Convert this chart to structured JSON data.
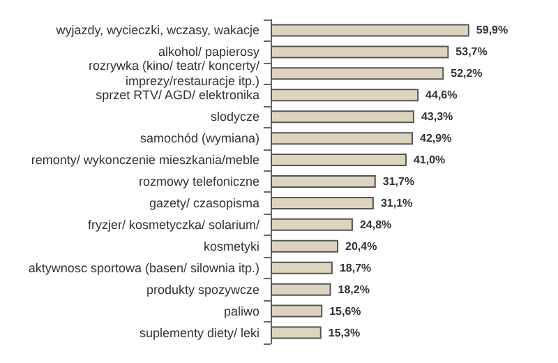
{
  "chart_data": {
    "type": "bar",
    "orientation": "horizontal",
    "color": "#ddd4bf",
    "categories": [
      "wyjazdy, wycieczki, wczasy, wakacje",
      "alkohol/ papierosy",
      "rozrywka (kino/ teatr/ koncerty/\nimprezy/restauracje itp.)",
      "sprzet RTV/ AGD/ elektronika",
      "slodycze",
      "samochód (wymiana)",
      "remonty/ wykonczenie mieszkania/meble",
      "rozmowy telefoniczne",
      "gazety/ czasopisma",
      "fryzjer/ kosmetyczka/ solarium/",
      "kosmetyki",
      "aktywnosc sportowa (basen/ silownia itp.)",
      "produkty spozywcze",
      "paliwo",
      "suplementy diety/ leki"
    ],
    "values": [
      59.9,
      53.7,
      52.2,
      44.6,
      43.3,
      42.9,
      41.0,
      31.7,
      31.1,
      24.8,
      20.4,
      18.7,
      18.2,
      15.6,
      15.3
    ],
    "value_labels": [
      "59,9%",
      "53,7%",
      "52,2%",
      "44,6%",
      "43,3%",
      "42,9%",
      "41,0%",
      "31,7%",
      "31,1%",
      "24,8%",
      "20,4%",
      "18,7%",
      "18,2%",
      "15,6%",
      "15,3%"
    ]
  }
}
